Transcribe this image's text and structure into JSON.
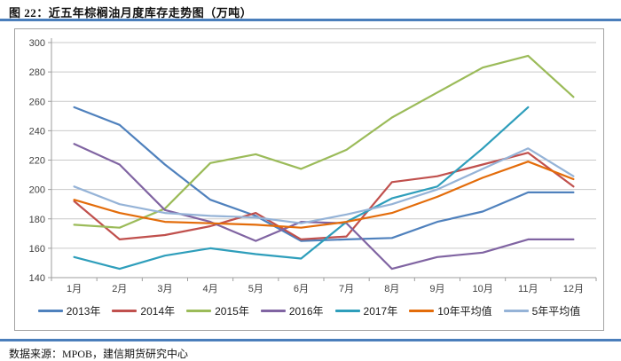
{
  "page": {
    "title": "图 22：近五年棕榈油月度库存走势图（万吨）",
    "source": "数据来源：MPOB，建信期货研究中心",
    "accent_color": "#4a7ebb"
  },
  "chart_data": {
    "type": "line",
    "title": "近五年棕榈油月度库存走势图（万吨）",
    "categories": [
      "1月",
      "2月",
      "3月",
      "4月",
      "5月",
      "6月",
      "7月",
      "8月",
      "9月",
      "10月",
      "11月",
      "12月"
    ],
    "series": [
      {
        "name": "2013年",
        "color": "#4f81bd",
        "values": [
          256,
          244,
          217,
          193,
          182,
          165,
          166,
          167,
          178,
          185,
          198,
          198
        ]
      },
      {
        "name": "2014年",
        "color": "#c0504d",
        "values": [
          192,
          166,
          169,
          175,
          184,
          166,
          168,
          205,
          209,
          217,
          225,
          202
        ]
      },
      {
        "name": "2015年",
        "color": "#9bbb59",
        "values": [
          176,
          174,
          187,
          218,
          224,
          214,
          227,
          249,
          266,
          283,
          291,
          263
        ]
      },
      {
        "name": "2016年",
        "color": "#8064a2",
        "values": [
          231,
          217,
          186,
          178,
          165,
          178,
          177,
          146,
          154,
          157,
          166,
          166
        ]
      },
      {
        "name": "2017年",
        "color": "#2e9ebb",
        "values": [
          154,
          146,
          155,
          160,
          156,
          153,
          178,
          194,
          202,
          228,
          256,
          null
        ]
      },
      {
        "name": "10年平均值",
        "color": "#e36c0a",
        "values": [
          193,
          184,
          178,
          177,
          176,
          174,
          178,
          184,
          195,
          208,
          219,
          207
        ]
      },
      {
        "name": "5年平均值",
        "color": "#95b3d7",
        "values": [
          202,
          190,
          184,
          182,
          181,
          177,
          183,
          190,
          200,
          214,
          228,
          209
        ]
      }
    ],
    "ylim": [
      140,
      300
    ],
    "ytick_step": 20,
    "xlabel": "",
    "ylabel": "",
    "grid": true,
    "legend_position": "bottom"
  },
  "style": {
    "grid_color": "#c9c9c9",
    "axis_color": "#9e9e9e",
    "tick_label_color": "#404040",
    "line_width": 2.2
  }
}
